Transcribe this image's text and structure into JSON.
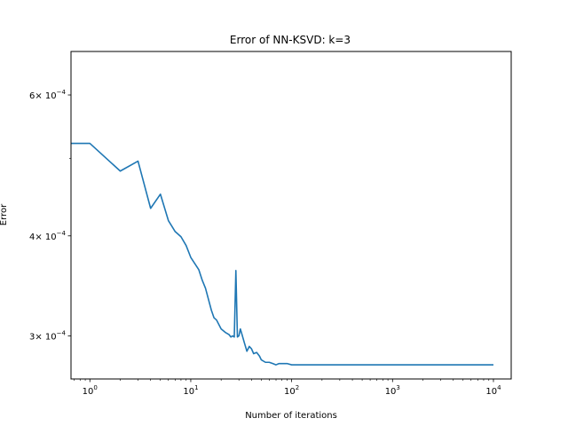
{
  "chart_data": {
    "type": "line",
    "title": "Error of NN-KSVD: k=3",
    "xlabel": "Number of iterations",
    "ylabel": "Error",
    "x_scale": "log",
    "y_scale": "log",
    "xlim": [
      0.65,
      15000
    ],
    "ylim": [
      0.000265,
      0.00068
    ],
    "grid": false,
    "x_ticks": [
      {
        "value": 1,
        "base": "10",
        "exp": "0"
      },
      {
        "value": 10,
        "base": "10",
        "exp": "1"
      },
      {
        "value": 100,
        "base": "10",
        "exp": "2"
      },
      {
        "value": 1000,
        "base": "10",
        "exp": "3"
      },
      {
        "value": 10000,
        "base": "10",
        "exp": "4"
      }
    ],
    "y_ticks": [
      {
        "value": 0.0003,
        "mant": "3",
        "base": "× 10",
        "exp": "−4"
      },
      {
        "value": 0.0004,
        "mant": "4",
        "base": "× 10",
        "exp": "−4"
      },
      {
        "value": 0.0006,
        "mant": "6",
        "base": "× 10",
        "exp": "−4"
      }
    ],
    "y_minor_ticks": [
      0.0005
    ],
    "series": [
      {
        "color": "#1f77b4",
        "points": [
          [
            0.65,
            0.000522
          ],
          [
            1,
            0.000522
          ],
          [
            2,
            0.000482
          ],
          [
            3,
            0.000496
          ],
          [
            4,
            0.000433
          ],
          [
            5,
            0.000451
          ],
          [
            6,
            0.000418
          ],
          [
            7,
            0.000405
          ],
          [
            8,
            0.000399
          ],
          [
            9,
            0.000389
          ],
          [
            10,
            0.000376
          ],
          [
            12,
            0.000363
          ],
          [
            13,
            0.000352
          ],
          [
            14,
            0.000344
          ],
          [
            15,
            0.000333
          ],
          [
            16,
            0.000323
          ],
          [
            17,
            0.000316
          ],
          [
            18,
            0.000314
          ],
          [
            20,
            0.000306
          ],
          [
            22,
            0.000303
          ],
          [
            24,
            0.000301
          ],
          [
            25,
            0.000299
          ],
          [
            26,
            0.0003
          ],
          [
            27,
            0.000299
          ],
          [
            28,
            0.000362
          ],
          [
            29,
            0.000299
          ],
          [
            30,
            0.0003
          ],
          [
            31,
            0.000306
          ],
          [
            32,
            0.000302
          ],
          [
            34,
            0.000294
          ],
          [
            36,
            0.000287
          ],
          [
            38,
            0.000291
          ],
          [
            40,
            0.000289
          ],
          [
            42,
            0.000285
          ],
          [
            45,
            0.000286
          ],
          [
            48,
            0.000283
          ],
          [
            50,
            0.00028
          ],
          [
            55,
            0.000278
          ],
          [
            60,
            0.000278
          ],
          [
            65,
            0.000277
          ],
          [
            70,
            0.000276
          ],
          [
            75,
            0.000277
          ],
          [
            80,
            0.000277
          ],
          [
            90,
            0.000277
          ],
          [
            100,
            0.000276
          ],
          [
            120,
            0.000276
          ],
          [
            150,
            0.000276
          ],
          [
            200,
            0.000276
          ],
          [
            500,
            0.000276
          ],
          [
            1000,
            0.000276
          ],
          [
            5000,
            0.000276
          ],
          [
            10000,
            0.000276
          ]
        ]
      }
    ]
  }
}
